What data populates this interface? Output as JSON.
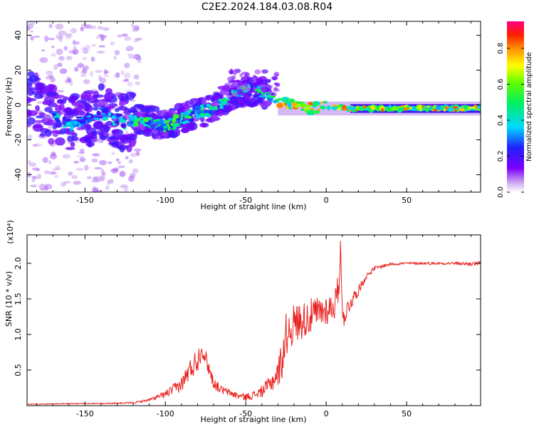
{
  "page": {
    "title": "C2E2.2024.184.03.08.R04"
  },
  "chart_data": [
    {
      "type": "heatmap",
      "xlabel": "Height of straight line (km)",
      "ylabel": "Frequency (Hz)",
      "xlim": [
        -186,
        96
      ],
      "ylim": [
        -50,
        48
      ],
      "xticks": [
        -150,
        -100,
        -50,
        0,
        50
      ],
      "yticks": [
        -40,
        -20,
        0,
        20,
        40
      ],
      "ridge": {
        "x": [
          -185,
          -160,
          -140,
          -125,
          -115,
          -100,
          -85,
          -70,
          -60,
          -50,
          -40,
          -33,
          -20,
          -10,
          0,
          15,
          30,
          60,
          95
        ],
        "frequency": [
          4,
          -12,
          -5,
          -10,
          -8,
          -12,
          -6,
          -2,
          5,
          8,
          8,
          4,
          -1,
          -2,
          -1,
          -2,
          -2,
          -2,
          -2
        ]
      },
      "colorbar": {
        "label": "Normalized spectral amplitude",
        "range": [
          0,
          0.95
        ],
        "ticks": [
          0.0,
          0.2,
          0.4,
          0.6,
          0.8
        ]
      }
    },
    {
      "type": "line",
      "xlabel": "Height of straight line (km)",
      "ylabel": "SNR (10 * v/v)",
      "multiplier": "(x10⁴)",
      "xlim": [
        -186,
        96
      ],
      "ylim": [
        0,
        2.4
      ],
      "xticks": [
        -150,
        -100,
        -50,
        0,
        50
      ],
      "yticks": [
        0.5,
        1.0,
        1.5,
        2.0
      ],
      "series": [
        {
          "color": "#e8231f",
          "x": [
            -186,
            -150,
            -140,
            -120,
            -110,
            -100,
            -90,
            -85,
            -80,
            -77,
            -74,
            -70,
            -65,
            -60,
            -55,
            -50,
            -45,
            -40,
            -35,
            -30,
            -27,
            -25,
            -20,
            -15,
            -10,
            -5,
            0,
            5,
            8,
            9,
            10,
            15,
            20,
            25,
            30,
            40,
            50,
            60,
            70,
            80,
            90,
            96
          ],
          "values": [
            0.02,
            0.03,
            0.03,
            0.04,
            0.08,
            0.16,
            0.3,
            0.5,
            0.65,
            0.8,
            0.6,
            0.32,
            0.22,
            0.18,
            0.14,
            0.12,
            0.15,
            0.2,
            0.3,
            0.45,
            0.7,
            1.0,
            1.15,
            1.2,
            1.25,
            1.3,
            1.35,
            1.4,
            1.7,
            2.35,
            1.2,
            1.45,
            1.62,
            1.82,
            1.93,
            1.99,
            2.0,
            2.0,
            2.0,
            2.0,
            1.99,
            2.0
          ],
          "noise": [
            0.005,
            0.008,
            0.008,
            0.01,
            0.02,
            0.05,
            0.1,
            0.15,
            0.18,
            0.12,
            0.12,
            0.08,
            0.06,
            0.05,
            0.05,
            0.05,
            0.06,
            0.08,
            0.12,
            0.2,
            0.3,
            0.3,
            0.28,
            0.26,
            0.25,
            0.24,
            0.22,
            0.2,
            0.2,
            0.1,
            0.15,
            0.12,
            0.07,
            0.04,
            0.03,
            0.02,
            0.02,
            0.02,
            0.02,
            0.02,
            0.03,
            0.03
          ]
        }
      ]
    }
  ]
}
